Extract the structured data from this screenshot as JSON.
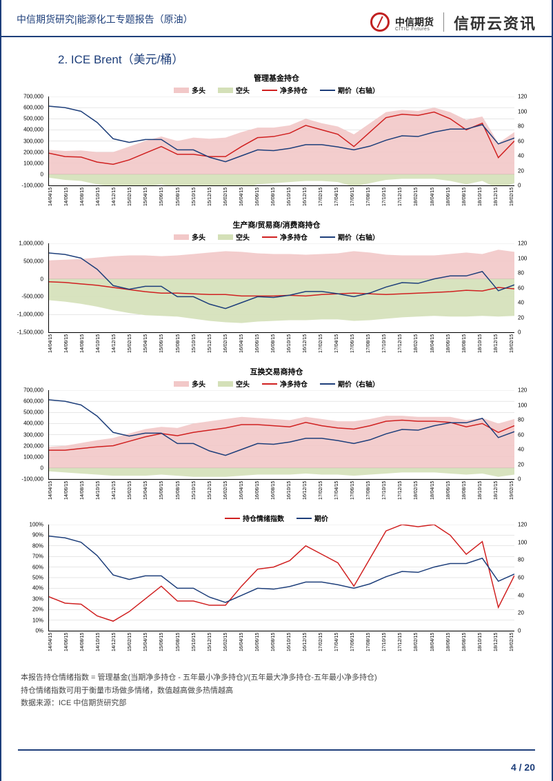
{
  "header": {
    "left": "中信期货研究|能源化工专题报告（原油）",
    "logo_name": "中信期货",
    "logo_sub": "CITIC Futures",
    "brand": "信研云资讯"
  },
  "section_title": "2.  ICE Brent（美元/桶）",
  "x_ticks": [
    "14/04/15",
    "14/06/15",
    "14/08/15",
    "14/10/15",
    "14/12/15",
    "15/02/15",
    "15/04/15",
    "15/06/15",
    "15/08/15",
    "15/10/15",
    "15/12/15",
    "16/02/15",
    "16/04/15",
    "16/06/15",
    "16/08/15",
    "16/10/15",
    "16/12/15",
    "17/02/15",
    "17/04/15",
    "17/06/15",
    "17/08/15",
    "17/10/15",
    "17/12/15",
    "18/02/15",
    "18/04/15",
    "18/06/15",
    "18/08/15",
    "18/10/15",
    "18/12/15",
    "19/02/15"
  ],
  "legend_area": {
    "long": "多头",
    "short": "空头",
    "net": "净多持仓",
    "price": "期价（右轴）",
    "long_color": "#f2c8c8",
    "short_color": "#d4e0b8",
    "net_color": "#d02020",
    "price_color": "#1d3e7a"
  },
  "legend_sent": {
    "sent": "持仓情绪指数",
    "price": "期价",
    "sent_color": "#d02020",
    "price_color": "#1d3e7a"
  },
  "chart1": {
    "title": "管理基金持仓",
    "y_left": {
      "min": -100000,
      "max": 700000,
      "step": 100000
    },
    "y_right": {
      "min": 0,
      "max": 120,
      "step": 20
    },
    "long": [
      220000,
      210000,
      215000,
      200000,
      200000,
      250000,
      300000,
      340000,
      300000,
      330000,
      320000,
      330000,
      380000,
      420000,
      420000,
      440000,
      500000,
      460000,
      430000,
      360000,
      460000,
      560000,
      580000,
      570000,
      600000,
      560000,
      490000,
      520000,
      280000,
      380000
    ],
    "short": [
      -30000,
      -50000,
      -60000,
      -90000,
      -110000,
      -120000,
      -110000,
      -90000,
      -120000,
      -150000,
      -160000,
      -170000,
      -130000,
      -90000,
      -80000,
      -70000,
      -60000,
      -60000,
      -70000,
      -110000,
      -80000,
      -50000,
      -40000,
      -40000,
      -40000,
      -60000,
      -90000,
      -60000,
      -130000,
      -80000
    ],
    "net": [
      190000,
      160000,
      155000,
      110000,
      90000,
      130000,
      190000,
      250000,
      180000,
      180000,
      160000,
      160000,
      250000,
      330000,
      340000,
      370000,
      440000,
      400000,
      360000,
      250000,
      380000,
      510000,
      540000,
      530000,
      560000,
      500000,
      400000,
      460000,
      150000,
      300000
    ],
    "price": [
      107,
      105,
      100,
      85,
      63,
      58,
      62,
      62,
      48,
      48,
      38,
      32,
      40,
      48,
      47,
      50,
      55,
      55,
      52,
      48,
      53,
      61,
      67,
      66,
      72,
      76,
      76,
      82,
      56,
      64
    ]
  },
  "chart2": {
    "title": "生产商/贸易商/消费商持仓",
    "y_left": {
      "min": -1500000,
      "max": 1000000,
      "step": 500000
    },
    "y_right": {
      "min": 0,
      "max": 120,
      "step": 20
    },
    "long": [
      520000,
      540000,
      560000,
      600000,
      640000,
      660000,
      660000,
      640000,
      660000,
      700000,
      740000,
      780000,
      760000,
      720000,
      700000,
      700000,
      680000,
      700000,
      720000,
      780000,
      740000,
      680000,
      660000,
      660000,
      660000,
      700000,
      740000,
      700000,
      820000,
      760000
    ],
    "short": [
      -600000,
      -640000,
      -700000,
      -780000,
      -880000,
      -960000,
      -1020000,
      -1040000,
      -1060000,
      -1120000,
      -1180000,
      -1220000,
      -1240000,
      -1200000,
      -1180000,
      -1160000,
      -1160000,
      -1140000,
      -1140000,
      -1180000,
      -1160000,
      -1120000,
      -1080000,
      -1060000,
      -1040000,
      -1060000,
      -1060000,
      -1040000,
      -1060000,
      -1040000
    ],
    "net": [
      -80000,
      -100000,
      -140000,
      -180000,
      -240000,
      -300000,
      -360000,
      -400000,
      -400000,
      -420000,
      -440000,
      -440000,
      -480000,
      -480000,
      -480000,
      -460000,
      -480000,
      -440000,
      -420000,
      -400000,
      -420000,
      -440000,
      -420000,
      -400000,
      -380000,
      -360000,
      -320000,
      -340000,
      -240000,
      -280000
    ],
    "price": [
      107,
      105,
      100,
      85,
      63,
      58,
      62,
      62,
      48,
      48,
      38,
      32,
      40,
      48,
      47,
      50,
      55,
      55,
      52,
      48,
      53,
      61,
      67,
      66,
      72,
      76,
      76,
      82,
      56,
      64
    ]
  },
  "chart3": {
    "title": "互换交易商持仓",
    "y_left": {
      "min": -100000,
      "max": 700000,
      "step": 100000
    },
    "y_right": {
      "min": 0,
      "max": 120,
      "step": 20
    },
    "long": [
      190000,
      200000,
      225000,
      250000,
      270000,
      310000,
      350000,
      370000,
      360000,
      400000,
      420000,
      440000,
      460000,
      450000,
      440000,
      430000,
      460000,
      440000,
      420000,
      420000,
      440000,
      470000,
      470000,
      460000,
      460000,
      460000,
      430000,
      450000,
      400000,
      440000
    ],
    "short": [
      -30000,
      -40000,
      -50000,
      -60000,
      -70000,
      -70000,
      -70000,
      -60000,
      -70000,
      -80000,
      -80000,
      -80000,
      -70000,
      -60000,
      -60000,
      -60000,
      -50000,
      -60000,
      -60000,
      -70000,
      -60000,
      -50000,
      -40000,
      -40000,
      -40000,
      -50000,
      -60000,
      -50000,
      -80000,
      -60000
    ],
    "net": [
      160000,
      160000,
      175000,
      190000,
      200000,
      240000,
      280000,
      310000,
      290000,
      320000,
      340000,
      360000,
      390000,
      390000,
      380000,
      370000,
      410000,
      380000,
      360000,
      350000,
      380000,
      420000,
      430000,
      420000,
      420000,
      410000,
      370000,
      400000,
      320000,
      380000
    ],
    "price": [
      107,
      105,
      100,
      85,
      63,
      58,
      62,
      62,
      48,
      48,
      38,
      32,
      40,
      48,
      47,
      50,
      55,
      55,
      52,
      48,
      53,
      61,
      67,
      66,
      72,
      76,
      76,
      82,
      56,
      64
    ]
  },
  "chart4": {
    "y_left": {
      "min": 0,
      "max": 100,
      "step": 10,
      "suffix": "%"
    },
    "y_right": {
      "min": 0,
      "max": 120,
      "step": 20
    },
    "sent": [
      32,
      26,
      25,
      14,
      9,
      18,
      30,
      42,
      28,
      28,
      24,
      24,
      42,
      58,
      60,
      66,
      80,
      72,
      64,
      42,
      68,
      94,
      100,
      98,
      100,
      90,
      72,
      84,
      22,
      52
    ],
    "price": [
      107,
      105,
      100,
      85,
      63,
      58,
      62,
      62,
      48,
      48,
      38,
      32,
      40,
      48,
      47,
      50,
      55,
      55,
      52,
      48,
      53,
      61,
      67,
      66,
      72,
      76,
      76,
      82,
      56,
      64
    ]
  },
  "note": {
    "l1": "本报告持仓情绪指数 = 管理基金(当期净多持仓 - 五年最小净多持仓)/(五年最大净多持仓-五年最小净多持仓)",
    "l2": "持仓情绪指数可用于衡量市场做多情绪，数值越高做多热情越高",
    "l3": "数据来源：ICE 中信期货研究部"
  },
  "footer": {
    "page": "4",
    "sep": "/",
    "total": "20"
  },
  "colors": {
    "border": "#1d3e7a",
    "grid": "#cccccc",
    "zero": "#888888"
  }
}
